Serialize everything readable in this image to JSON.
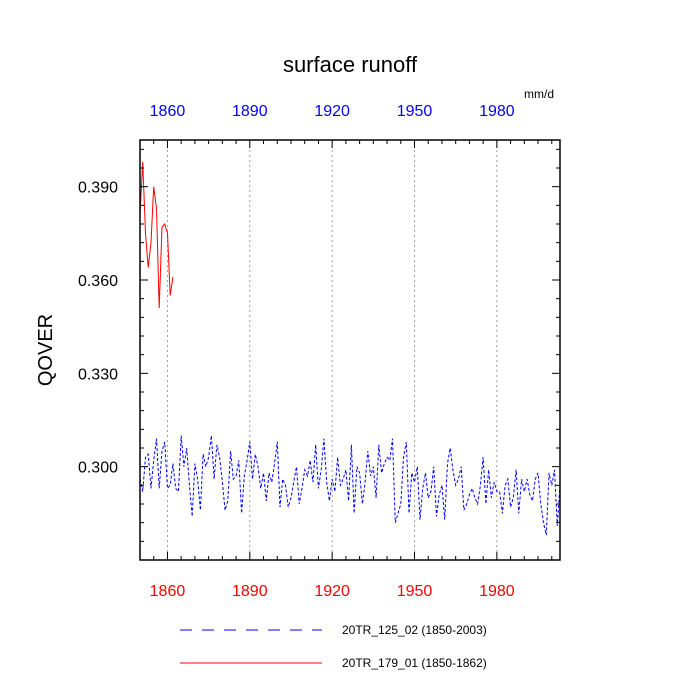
{
  "chart_data": {
    "type": "line",
    "title": "surface runoff",
    "ylabel": "QOVER",
    "units": "mm/d",
    "xlim": [
      1850,
      2003
    ],
    "ylim": [
      0.27,
      0.405
    ],
    "x_ticks": [
      1860,
      1890,
      1920,
      1950,
      1980
    ],
    "x_tick_labels": [
      "1860",
      "1890",
      "1920",
      "1950",
      "1980"
    ],
    "y_ticks": [
      0.3,
      0.33,
      0.36,
      0.39
    ],
    "y_tick_labels": [
      "0.300",
      "0.330",
      "0.360",
      "0.390"
    ],
    "top_tick_color": "#0000ff",
    "bottom_tick_color": "#ff0000",
    "grid": "vertical dotted at major x ticks",
    "legend_position": "bottom",
    "series": [
      {
        "name": "20TR_125_02 (1850-2003)",
        "color": "#0000ff",
        "dash": "dashed",
        "x": [
          1850,
          1851,
          1852,
          1853,
          1854,
          1855,
          1856,
          1857,
          1858,
          1859,
          1860,
          1861,
          1862,
          1863,
          1864,
          1865,
          1866,
          1867,
          1868,
          1869,
          1870,
          1871,
          1872,
          1873,
          1874,
          1875,
          1876,
          1877,
          1878,
          1879,
          1880,
          1881,
          1882,
          1883,
          1884,
          1885,
          1886,
          1887,
          1888,
          1889,
          1890,
          1891,
          1892,
          1893,
          1894,
          1895,
          1896,
          1897,
          1898,
          1899,
          1900,
          1901,
          1902,
          1903,
          1904,
          1905,
          1906,
          1907,
          1908,
          1909,
          1910,
          1911,
          1912,
          1913,
          1914,
          1915,
          1916,
          1917,
          1918,
          1919,
          1920,
          1921,
          1922,
          1923,
          1924,
          1925,
          1926,
          1927,
          1928,
          1929,
          1930,
          1931,
          1932,
          1933,
          1934,
          1935,
          1936,
          1937,
          1938,
          1939,
          1940,
          1941,
          1942,
          1943,
          1944,
          1945,
          1946,
          1947,
          1948,
          1949,
          1950,
          1951,
          1952,
          1953,
          1954,
          1955,
          1956,
          1957,
          1958,
          1959,
          1960,
          1961,
          1962,
          1963,
          1964,
          1965,
          1966,
          1967,
          1968,
          1969,
          1970,
          1971,
          1972,
          1973,
          1974,
          1975,
          1976,
          1977,
          1978,
          1979,
          1980,
          1981,
          1982,
          1983,
          1984,
          1985,
          1986,
          1987,
          1988,
          1989,
          1990,
          1991,
          1992,
          1993,
          1994,
          1995,
          1996,
          1997,
          1998,
          1999,
          2000,
          2001,
          2002,
          2003
        ],
        "values": [
          0.296,
          0.292,
          0.303,
          0.304,
          0.293,
          0.302,
          0.309,
          0.293,
          0.305,
          0.308,
          0.293,
          0.294,
          0.301,
          0.293,
          0.292,
          0.31,
          0.3,
          0.306,
          0.294,
          0.284,
          0.301,
          0.296,
          0.286,
          0.304,
          0.3,
          0.303,
          0.31,
          0.296,
          0.307,
          0.303,
          0.295,
          0.286,
          0.289,
          0.305,
          0.296,
          0.297,
          0.302,
          0.285,
          0.297,
          0.302,
          0.308,
          0.296,
          0.304,
          0.3,
          0.293,
          0.298,
          0.289,
          0.298,
          0.295,
          0.301,
          0.308,
          0.287,
          0.296,
          0.294,
          0.287,
          0.29,
          0.295,
          0.3,
          0.288,
          0.293,
          0.299,
          0.297,
          0.302,
          0.295,
          0.307,
          0.293,
          0.299,
          0.309,
          0.295,
          0.289,
          0.296,
          0.292,
          0.303,
          0.294,
          0.296,
          0.299,
          0.289,
          0.307,
          0.285,
          0.3,
          0.298,
          0.288,
          0.295,
          0.305,
          0.297,
          0.3,
          0.29,
          0.307,
          0.298,
          0.301,
          0.303,
          0.302,
          0.309,
          0.282,
          0.285,
          0.288,
          0.303,
          0.308,
          0.285,
          0.298,
          0.295,
          0.3,
          0.283,
          0.293,
          0.298,
          0.29,
          0.292,
          0.3,
          0.284,
          0.291,
          0.294,
          0.283,
          0.301,
          0.306,
          0.299,
          0.294,
          0.296,
          0.3,
          0.286,
          0.288,
          0.291,
          0.293,
          0.29,
          0.288,
          0.294,
          0.303,
          0.288,
          0.299,
          0.29,
          0.295,
          0.292,
          0.292,
          0.285,
          0.294,
          0.296,
          0.287,
          0.29,
          0.299,
          0.285,
          0.296,
          0.292,
          0.296,
          0.291,
          0.289,
          0.296,
          0.298,
          0.288,
          0.282,
          0.278,
          0.298,
          0.294,
          0.299,
          0.281,
          0.294
        ]
      },
      {
        "name": "20TR_179_01 (1850-1862)",
        "color": "#ff0000",
        "dash": "solid",
        "x": [
          1850,
          1851,
          1852,
          1853,
          1854,
          1855,
          1856,
          1857,
          1858,
          1859,
          1860,
          1861,
          1862
        ],
        "values": [
          0.381,
          0.398,
          0.375,
          0.364,
          0.372,
          0.39,
          0.383,
          0.351,
          0.377,
          0.378,
          0.375,
          0.355,
          0.361
        ]
      }
    ]
  }
}
